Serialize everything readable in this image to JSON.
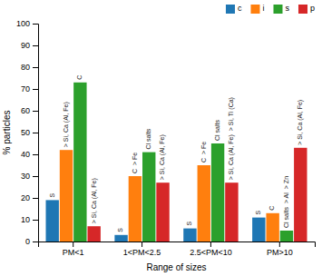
{
  "chart_data": {
    "type": "bar",
    "categories": [
      "PM<1",
      "1<PM<2.5",
      "2.5<PM<10",
      "PM>10"
    ],
    "series": [
      {
        "name": "c",
        "values": [
          19,
          3,
          6,
          11
        ]
      },
      {
        "name": "i",
        "values": [
          42,
          30,
          35,
          13
        ]
      },
      {
        "name": "s",
        "values": [
          73,
          41,
          45,
          5
        ]
      },
      {
        "name": "p",
        "values": [
          7,
          27,
          27,
          43
        ]
      }
    ],
    "xlabel": "Range of sizes",
    "ylabel": "% particles",
    "ylim": [
      0,
      100
    ],
    "yticks": [
      0,
      10,
      20,
      30,
      40,
      50,
      60,
      70,
      80,
      90,
      100
    ],
    "legend": "upper right",
    "annotations": [
      {
        "text": "S",
        "category": "PM<1",
        "series": "c"
      },
      {
        "text": "> Si, Ca (Al, Fe)",
        "category": "PM<1",
        "series": "i"
      },
      {
        "text": "C",
        "category": "PM<1",
        "series": "s"
      },
      {
        "text": "> Si, Ca (Al, Fe)",
        "category": "PM<1",
        "series": "p"
      },
      {
        "text": "S",
        "category": "1<PM<2.5",
        "series": "c"
      },
      {
        "text": "C",
        "category": "1<PM<2.5",
        "series": "i"
      },
      {
        "text": "Cl salts",
        "category": "1<PM<2.5",
        "series": "s"
      },
      {
        "text": "> Fe",
        "category": "1<PM<2.5",
        "series": "i"
      },
      {
        "text": "> Si, Ca (Al, Fe)",
        "category": "1<PM<2.5",
        "series": "p"
      },
      {
        "text": "S",
        "category": "2.5<PM<10",
        "series": "c"
      },
      {
        "text": "C",
        "category": "2.5<PM<10",
        "series": "i"
      },
      {
        "text": "Cl salts",
        "category": "2.5<PM<10",
        "series": "s"
      },
      {
        "text": "> Fe",
        "category": "2.5<PM<10",
        "series": "i"
      },
      {
        "text": "> Si, Ca (Al, Fe)",
        "category": "2.5<PM<10",
        "series": "p"
      },
      {
        "text": "> Si, Ti (Ca)",
        "category": "2.5<PM<10",
        "series": "p"
      },
      {
        "text": "S",
        "category": "PM>10",
        "series": "c"
      },
      {
        "text": "C",
        "category": "PM>10",
        "series": "i"
      },
      {
        "text": "Cl salts",
        "category": "PM>10",
        "series": "s"
      },
      {
        "text": "> Al",
        "category": "PM>10",
        "series": "s"
      },
      {
        "text": "> Zn",
        "category": "PM>10",
        "series": "s"
      },
      {
        "text": "> Si, Ca (Al, Fe)",
        "category": "PM>10",
        "series": "p"
      }
    ]
  }
}
